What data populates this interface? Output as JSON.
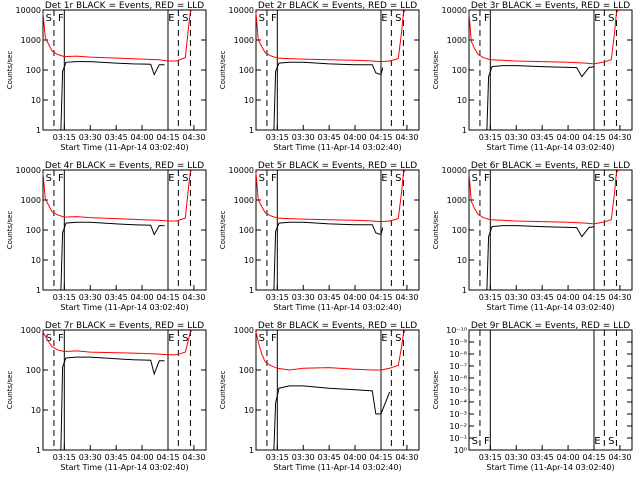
{
  "chart_data": [
    {
      "type": "line",
      "title": "Det 1r BLACK = Events, RED = LLD",
      "ylabel": "Counts/sec",
      "xlabel": "Start Time (11-Apr-14 03:02:40)",
      "yscale": "log",
      "ylim": [
        1,
        10000
      ],
      "yticks": [
        "1",
        "10",
        "100",
        "1000",
        "10000"
      ],
      "xticks": [
        "03:15",
        "03:30",
        "03:45",
        "04:00",
        "04:15",
        "04:30"
      ],
      "markers": [
        "S",
        "F",
        "E",
        "S"
      ],
      "series": [
        {
          "color": "#000000",
          "x": [
            "03:09",
            "03:13",
            "03:14",
            "03:16",
            "03:22",
            "03:30",
            "03:45",
            "03:55",
            "04:05",
            "04:07",
            "04:10",
            "04:13"
          ],
          "y": [
            0,
            0,
            90,
            180,
            190,
            190,
            170,
            160,
            155,
            70,
            150,
            150
          ]
        },
        {
          "color": "#ff0000",
          "x": [
            "03:02:40",
            "03:04",
            "03:06",
            "03:08",
            "03:11",
            "03:15",
            "03:22",
            "03:30",
            "03:45",
            "04:00",
            "04:10",
            "04:15",
            "04:20",
            "04:25",
            "04:27",
            "04:28",
            "04:29"
          ],
          "y": [
            8000,
            1200,
            700,
            420,
            330,
            280,
            290,
            270,
            250,
            230,
            220,
            200,
            200,
            260,
            3000,
            9000,
            10000
          ]
        }
      ]
    },
    {
      "type": "line",
      "title": "Det 2r BLACK = Events, RED = LLD",
      "ylabel": "Counts/sec",
      "xlabel": "Start Time (11-Apr-14 03:02:40)",
      "yscale": "log",
      "ylim": [
        1,
        10000
      ],
      "yticks": [
        "1",
        "10",
        "100",
        "1000",
        "10000"
      ],
      "xticks": [
        "03:15",
        "03:30",
        "03:45",
        "04:00",
        "04:15",
        "04:30"
      ],
      "markers": [
        "S",
        "F",
        "E",
        "S"
      ],
      "series": [
        {
          "color": "#000000",
          "x": [
            "03:09",
            "03:13",
            "03:14",
            "03:16",
            "03:22",
            "03:30",
            "03:45",
            "04:00",
            "04:10",
            "04:12",
            "04:15",
            "04:16"
          ],
          "y": [
            0,
            0,
            90,
            170,
            180,
            180,
            160,
            150,
            150,
            80,
            70,
            120
          ]
        },
        {
          "color": "#ff0000",
          "x": [
            "03:02:40",
            "03:04",
            "03:06",
            "03:08",
            "03:11",
            "03:15",
            "03:22",
            "03:30",
            "03:45",
            "04:00",
            "04:10",
            "04:15",
            "04:20",
            "04:25",
            "04:27",
            "04:28",
            "04:29"
          ],
          "y": [
            8000,
            1000,
            600,
            380,
            300,
            250,
            240,
            230,
            220,
            210,
            200,
            190,
            200,
            240,
            2000,
            8000,
            10000
          ]
        }
      ]
    },
    {
      "type": "line",
      "title": "Det 3r BLACK = Events, RED = LLD",
      "ylabel": "Counts/sec",
      "xlabel": "Start Time (11-Apr-14 03:02:40)",
      "yscale": "log",
      "ylim": [
        1,
        10000
      ],
      "yticks": [
        "1",
        "10",
        "100",
        "1000",
        "10000"
      ],
      "xticks": [
        "03:15",
        "03:30",
        "03:45",
        "04:00",
        "04:15",
        "04:30"
      ],
      "markers": [
        "S",
        "F",
        "E",
        "S"
      ],
      "series": [
        {
          "color": "#000000",
          "x": [
            "03:09",
            "03:13",
            "03:14",
            "03:16",
            "03:22",
            "03:30",
            "03:45",
            "03:55",
            "04:05",
            "04:08",
            "04:12",
            "04:15"
          ],
          "y": [
            0,
            0,
            60,
            130,
            140,
            140,
            130,
            125,
            120,
            60,
            120,
            130
          ]
        },
        {
          "color": "#ff0000",
          "x": [
            "03:02:40",
            "03:04",
            "03:06",
            "03:08",
            "03:11",
            "03:15",
            "03:22",
            "03:30",
            "03:45",
            "04:00",
            "04:10",
            "04:15",
            "04:20",
            "04:25",
            "04:27",
            "04:28",
            "04:29"
          ],
          "y": [
            8000,
            900,
            500,
            330,
            260,
            220,
            210,
            200,
            190,
            180,
            170,
            160,
            180,
            220,
            2000,
            8000,
            10000
          ]
        }
      ]
    },
    {
      "type": "line",
      "title": "Det 4r BLACK = Events, RED = LLD",
      "ylabel": "Counts/sec",
      "xlabel": "Start Time (11-Apr-14 03:02:40)",
      "yscale": "log",
      "ylim": [
        1,
        10000
      ],
      "yticks": [
        "1",
        "10",
        "100",
        "1000",
        "10000"
      ],
      "xticks": [
        "03:15",
        "03:30",
        "03:45",
        "04:00",
        "04:15",
        "04:30"
      ],
      "markers": [
        "S",
        "F",
        "E",
        "S"
      ],
      "series": [
        {
          "color": "#000000",
          "x": [
            "03:09",
            "03:13",
            "03:14",
            "03:16",
            "03:22",
            "03:30",
            "03:45",
            "03:55",
            "04:05",
            "04:07",
            "04:10",
            "04:13"
          ],
          "y": [
            0,
            0,
            80,
            170,
            180,
            180,
            160,
            150,
            145,
            70,
            140,
            140
          ]
        },
        {
          "color": "#ff0000",
          "x": [
            "03:02:40",
            "03:04",
            "03:06",
            "03:08",
            "03:11",
            "03:15",
            "03:22",
            "03:30",
            "03:45",
            "04:00",
            "04:10",
            "04:15",
            "04:20",
            "04:25",
            "04:27",
            "04:28",
            "04:29"
          ],
          "y": [
            8000,
            1100,
            650,
            400,
            320,
            270,
            280,
            260,
            240,
            220,
            210,
            200,
            200,
            250,
            3000,
            9000,
            10000
          ]
        }
      ]
    },
    {
      "type": "line",
      "title": "Det 5r BLACK = Events, RED = LLD",
      "ylabel": "Counts/sec",
      "xlabel": "Start Time (11-Apr-14 03:02:40)",
      "yscale": "log",
      "ylim": [
        1,
        10000
      ],
      "yticks": [
        "1",
        "10",
        "100",
        "1000",
        "10000"
      ],
      "xticks": [
        "03:15",
        "03:30",
        "03:45",
        "04:00",
        "04:15",
        "04:30"
      ],
      "markers": [
        "S",
        "F",
        "E",
        "S"
      ],
      "series": [
        {
          "color": "#000000",
          "x": [
            "03:09",
            "03:13",
            "03:14",
            "03:16",
            "03:22",
            "03:30",
            "03:45",
            "04:00",
            "04:10",
            "04:12",
            "04:15",
            "04:16"
          ],
          "y": [
            0,
            0,
            90,
            170,
            180,
            180,
            160,
            150,
            150,
            80,
            70,
            120
          ]
        },
        {
          "color": "#ff0000",
          "x": [
            "03:02:40",
            "03:04",
            "03:06",
            "03:08",
            "03:11",
            "03:15",
            "03:22",
            "03:30",
            "03:45",
            "04:00",
            "04:10",
            "04:15",
            "04:20",
            "04:25",
            "04:27",
            "04:28",
            "04:29"
          ],
          "y": [
            8000,
            1000,
            600,
            380,
            300,
            250,
            240,
            230,
            220,
            210,
            200,
            190,
            200,
            240,
            2000,
            8000,
            10000
          ]
        }
      ]
    },
    {
      "type": "line",
      "title": "Det 6r BLACK = Events, RED = LLD",
      "ylabel": "Counts/sec",
      "xlabel": "Start Time (11-Apr-14 03:02:40)",
      "yscale": "log",
      "ylim": [
        1,
        10000
      ],
      "yticks": [
        "1",
        "10",
        "100",
        "1000",
        "10000"
      ],
      "xticks": [
        "03:15",
        "03:30",
        "03:45",
        "04:00",
        "04:15",
        "04:30"
      ],
      "markers": [
        "S",
        "F",
        "E",
        "S"
      ],
      "series": [
        {
          "color": "#000000",
          "x": [
            "03:09",
            "03:13",
            "03:14",
            "03:16",
            "03:22",
            "03:30",
            "03:45",
            "03:55",
            "04:05",
            "04:08",
            "04:12",
            "04:15"
          ],
          "y": [
            0,
            0,
            60,
            130,
            140,
            140,
            130,
            125,
            120,
            60,
            120,
            130
          ]
        },
        {
          "color": "#ff0000",
          "x": [
            "03:02:40",
            "03:04",
            "03:06",
            "03:08",
            "03:11",
            "03:15",
            "03:22",
            "03:30",
            "03:45",
            "04:00",
            "04:10",
            "04:15",
            "04:20",
            "04:25",
            "04:27",
            "04:28",
            "04:29"
          ],
          "y": [
            8000,
            900,
            500,
            330,
            260,
            220,
            210,
            200,
            190,
            180,
            170,
            160,
            180,
            220,
            2000,
            8000,
            10000
          ]
        }
      ]
    },
    {
      "type": "line",
      "title": "Det 7r BLACK = Events, RED = LLD",
      "ylabel": "Counts/sec",
      "xlabel": "Start Time (11-Apr-14 03:02:40)",
      "yscale": "log",
      "ylim": [
        1,
        1000
      ],
      "yticks": [
        "1",
        "10",
        "100",
        "1000"
      ],
      "xticks": [
        "03:15",
        "03:30",
        "03:45",
        "04:00",
        "04:15",
        "04:30"
      ],
      "markers": [
        "S",
        "F",
        "E",
        "S"
      ],
      "series": [
        {
          "color": "#000000",
          "x": [
            "03:09",
            "03:13",
            "03:14",
            "03:16",
            "03:22",
            "03:30",
            "03:45",
            "03:55",
            "04:05",
            "04:07",
            "04:10",
            "04:13"
          ],
          "y": [
            0,
            0,
            120,
            200,
            210,
            210,
            190,
            180,
            175,
            80,
            170,
            170
          ]
        },
        {
          "color": "#ff0000",
          "x": [
            "03:02:40",
            "03:04",
            "03:06",
            "03:08",
            "03:11",
            "03:15",
            "03:22",
            "03:30",
            "03:45",
            "04:00",
            "04:10",
            "04:15",
            "04:20",
            "04:25",
            "04:27",
            "04:28",
            "04:29"
          ],
          "y": [
            900,
            700,
            500,
            380,
            320,
            290,
            300,
            280,
            270,
            260,
            250,
            240,
            240,
            280,
            600,
            900,
            1000
          ]
        }
      ]
    },
    {
      "type": "line",
      "title": "Det 8r BLACK = Events, RED = LLD",
      "ylabel": "Counts/sec",
      "xlabel": "Start Time (11-Apr-14 03:02:40)",
      "yscale": "log",
      "ylim": [
        1,
        1000
      ],
      "yticks": [
        "1",
        "10",
        "100",
        "1000"
      ],
      "xticks": [
        "03:15",
        "03:30",
        "03:45",
        "04:00",
        "04:15",
        "04:30"
      ],
      "markers": [
        "S",
        "F",
        "E",
        "S"
      ],
      "series": [
        {
          "color": "#000000",
          "x": [
            "03:09",
            "03:13",
            "03:14",
            "03:16",
            "03:22",
            "03:30",
            "03:45",
            "04:00",
            "04:10",
            "04:12",
            "04:15",
            "04:20"
          ],
          "y": [
            0,
            0,
            15,
            35,
            40,
            40,
            35,
            32,
            30,
            8,
            8,
            28
          ]
        },
        {
          "color": "#ff0000",
          "x": [
            "03:02:40",
            "03:04",
            "03:06",
            "03:08",
            "03:11",
            "03:15",
            "03:22",
            "03:30",
            "03:45",
            "04:00",
            "04:10",
            "04:15",
            "04:20",
            "04:25",
            "04:27",
            "04:28",
            "04:29"
          ],
          "y": [
            900,
            500,
            250,
            160,
            130,
            110,
            100,
            110,
            115,
            105,
            100,
            100,
            110,
            130,
            400,
            800,
            1000
          ]
        }
      ]
    },
    {
      "type": "line",
      "title": "Det 9r BLACK = Events, RED = LLD",
      "ylabel": "Counts/sec",
      "xlabel": "Start Time (11-Apr-14 03:02:40)",
      "yscale": "log",
      "ylim": [
        1,
        10
      ],
      "yticks": [
        "10⁰",
        "10⁻¹",
        "10⁻²",
        "10⁻³",
        "10⁻⁴",
        "10⁻⁵",
        "10⁻⁶",
        "10⁻⁷",
        "10⁻⁸",
        "10⁻⁹",
        "10⁻¹⁰"
      ],
      "xticks": [
        "03:15",
        "03:30",
        "03:45",
        "04:00",
        "04:15",
        "04:30"
      ],
      "markers": [
        "S",
        "F",
        "E",
        "S"
      ],
      "series": []
    }
  ]
}
